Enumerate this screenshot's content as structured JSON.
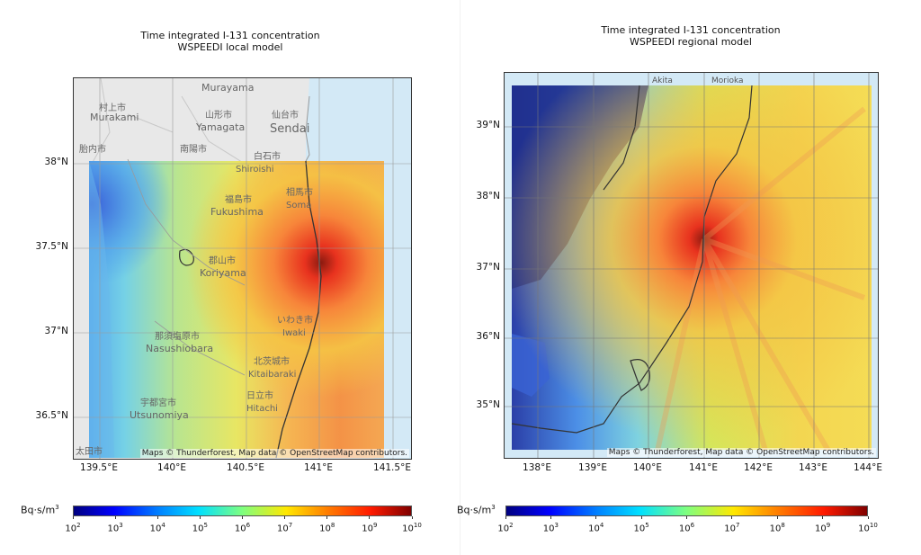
{
  "left": {
    "title_line1": "Time integrated I-131 concentration",
    "title_line2": "WSPEEDI local model",
    "attribution": "Maps © Thunderforest, Map data © OpenStreetMap contributors.",
    "y_ticks": [
      "38°N",
      "37.5°N",
      "37°N",
      "36.5°N"
    ],
    "x_ticks": [
      "139.5°E",
      "140°E",
      "140.5°E",
      "141°E",
      "141.5°E"
    ],
    "place_labels": [
      "Murayama",
      "村上市",
      "Murakami",
      "山形市",
      "Yamagata",
      "仙台市",
      "Sendai",
      "南陽市",
      "白石市",
      "Shiroishi",
      "福島市",
      "Fukushima",
      "相馬市",
      "Soma",
      "郡山市",
      "Koriyama",
      "那須塩原市",
      "Nasushiobara",
      "いわき市",
      "Iwaki",
      "北茨城市",
      "Kitaibaraki",
      "宇都宮市",
      "Utsunomiya",
      "日立市",
      "Hitachi",
      "胎内市",
      "太田市"
    ]
  },
  "right": {
    "title_line1": "Time integrated I-131 concentration",
    "title_line2": "WSPEEDI regional model",
    "attribution": "Maps © Thunderforest, Map data © OpenStreetMap contributors.",
    "y_ticks": [
      "39°N",
      "38°N",
      "37°N",
      "36°N",
      "35°N"
    ],
    "x_ticks": [
      "138°E",
      "139°E",
      "140°E",
      "141°E",
      "142°E",
      "143°E",
      "144°E"
    ],
    "place_labels": [
      "Akita",
      "Morioka"
    ]
  },
  "colorbar": {
    "label": "Bq·s/m",
    "label_sup": "3",
    "tick_base": "10",
    "tick_exponents": [
      "2",
      "3",
      "4",
      "5",
      "6",
      "7",
      "8",
      "9",
      "10"
    ],
    "colors": [
      "#00007f",
      "#0000ff",
      "#007fff",
      "#00e0ff",
      "#7fff7f",
      "#ffe800",
      "#ff7f00",
      "#ff1a00",
      "#7f0000"
    ]
  }
}
